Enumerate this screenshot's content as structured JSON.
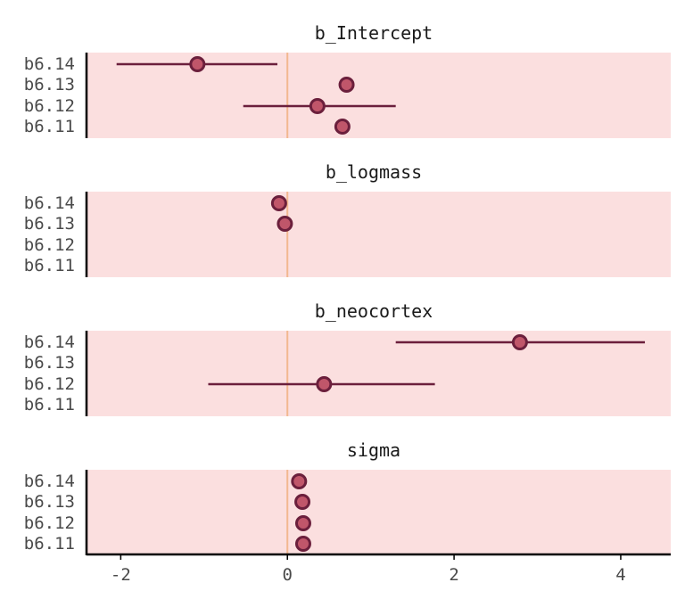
{
  "chart_data": {
    "type": "scatter",
    "subtype": "coefficient-plot-with-intervals",
    "models": [
      "b6.14",
      "b6.13",
      "b6.12",
      "b6.11"
    ],
    "xlim": [
      -2.4,
      4.6
    ],
    "xticks": [
      -2,
      0,
      2,
      4
    ],
    "xtick_labels": [
      "-2",
      "0",
      "2",
      "4"
    ],
    "reference_line": 0,
    "grid": false,
    "colors": {
      "panel": "#fbdfdf",
      "point_fill": "#c0566a",
      "point_stroke": "#6b1f3c",
      "interval": "#6b1f3c",
      "reference": "#f2b890",
      "axis": "#000000"
    },
    "facets": [
      {
        "title": "b_Intercept",
        "estimates": [
          {
            "model": "b6.14",
            "mean": -1.08,
            "lower": -2.05,
            "upper": -0.12
          },
          {
            "model": "b6.13",
            "mean": 0.71,
            "lower": 0.71,
            "upper": 0.71
          },
          {
            "model": "b6.12",
            "mean": 0.36,
            "lower": -0.53,
            "upper": 1.3
          },
          {
            "model": "b6.11",
            "mean": 0.66,
            "lower": 0.66,
            "upper": 0.66
          }
        ]
      },
      {
        "title": "b_logmass",
        "estimates": [
          {
            "model": "b6.14",
            "mean": -0.1,
            "lower": -0.1,
            "upper": -0.1
          },
          {
            "model": "b6.13",
            "mean": -0.03,
            "lower": -0.03,
            "upper": -0.03
          }
        ]
      },
      {
        "title": "b_neocortex",
        "estimates": [
          {
            "model": "b6.14",
            "mean": 2.79,
            "lower": 1.3,
            "upper": 4.29
          },
          {
            "model": "b6.12",
            "mean": 0.44,
            "lower": -0.95,
            "upper": 1.77
          }
        ]
      },
      {
        "title": "sigma",
        "estimates": [
          {
            "model": "b6.14",
            "mean": 0.14,
            "lower": 0.14,
            "upper": 0.14
          },
          {
            "model": "b6.13",
            "mean": 0.18,
            "lower": 0.18,
            "upper": 0.18
          },
          {
            "model": "b6.12",
            "mean": 0.19,
            "lower": 0.19,
            "upper": 0.19
          },
          {
            "model": "b6.11",
            "mean": 0.19,
            "lower": 0.19,
            "upper": 0.19
          }
        ]
      }
    ]
  }
}
